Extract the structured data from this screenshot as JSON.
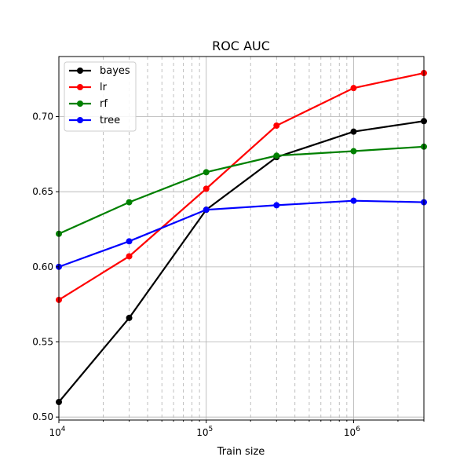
{
  "chart_data": {
    "type": "line",
    "title": "ROC AUC",
    "xlabel": "Train size",
    "ylabel": "",
    "xscale": "log",
    "xlim": [
      10000,
      3000000
    ],
    "ylim": [
      0.498,
      0.74
    ],
    "grid": true,
    "legend_position": "top-left",
    "x": [
      10000,
      30000,
      100000,
      300000,
      1000000,
      3000000
    ],
    "x_ticks": [
      {
        "value": 10000,
        "base": "10",
        "exp": "4"
      },
      {
        "value": 100000,
        "base": "10",
        "exp": "5"
      },
      {
        "value": 1000000,
        "base": "10",
        "exp": "6"
      }
    ],
    "y_ticks": [
      {
        "value": 0.5,
        "label": "0.50"
      },
      {
        "value": 0.55,
        "label": "0.55"
      },
      {
        "value": 0.6,
        "label": "0.60"
      },
      {
        "value": 0.65,
        "label": "0.65"
      },
      {
        "value": 0.7,
        "label": "0.70"
      }
    ],
    "series": [
      {
        "name": "bayes",
        "color": "#000000",
        "values": [
          0.51,
          0.566,
          0.638,
          0.673,
          0.69,
          0.697
        ]
      },
      {
        "name": "lr",
        "color": "#ff0000",
        "values": [
          0.578,
          0.607,
          0.652,
          0.694,
          0.719,
          0.729
        ]
      },
      {
        "name": "rf",
        "color": "#008000",
        "values": [
          0.622,
          0.643,
          0.663,
          0.674,
          0.677,
          0.68
        ]
      },
      {
        "name": "tree",
        "color": "#0000ff",
        "values": [
          0.6,
          0.617,
          0.638,
          0.641,
          0.644,
          0.643
        ]
      }
    ]
  }
}
